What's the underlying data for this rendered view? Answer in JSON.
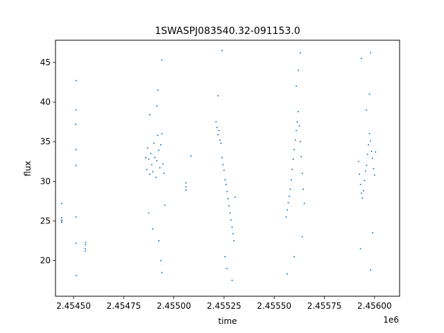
{
  "chart_data": {
    "type": "scatter",
    "title": "1SWASPJ083540.32-091153.0",
    "xlabel": "time",
    "ylabel": "flux",
    "x_offset_label": "1e6",
    "xlim": [
      2454410,
      2456125
    ],
    "ylim": [
      15.5,
      47.8
    ],
    "xticks": [
      2454500,
      2454750,
      2455000,
      2455250,
      2455500,
      2455750,
      2456000
    ],
    "xtick_labels": [
      "2.45450",
      "2.45475",
      "2.45500",
      "2.45525",
      "2.45550",
      "2.45575",
      "2.45600"
    ],
    "yticks": [
      20,
      25,
      30,
      35,
      40,
      45
    ],
    "ytick_labels": [
      "20",
      "25",
      "30",
      "35",
      "40",
      "45"
    ],
    "grid": false,
    "marker_color": "#1f77b4",
    "series": [
      {
        "values": [
          [
            2454440,
            25.0
          ],
          [
            2454440,
            25.4
          ],
          [
            2454441,
            24.8
          ],
          [
            2454441,
            27.2
          ],
          [
            2454442,
            25.1
          ],
          [
            2454513,
            42.7
          ],
          [
            2454512,
            39.0
          ],
          [
            2454511,
            37.2
          ],
          [
            2454512,
            34.0
          ],
          [
            2454513,
            32.0
          ],
          [
            2454512,
            25.5
          ],
          [
            2454513,
            22.2
          ],
          [
            2454513,
            18.1
          ],
          [
            2454558,
            21.5
          ],
          [
            2454559,
            22.0
          ],
          [
            2454559,
            21.2
          ],
          [
            2454560,
            22.3
          ],
          [
            2454860,
            33.0
          ],
          [
            2454865,
            31.5
          ],
          [
            2454870,
            34.2
          ],
          [
            2454875,
            32.8
          ],
          [
            2454880,
            30.9
          ],
          [
            2454885,
            33.5
          ],
          [
            2454890,
            32.1
          ],
          [
            2454895,
            31.2
          ],
          [
            2454900,
            34.8
          ],
          [
            2454905,
            33.0
          ],
          [
            2454910,
            30.5
          ],
          [
            2454915,
            32.6
          ],
          [
            2454920,
            35.8
          ],
          [
            2454925,
            33.9
          ],
          [
            2454930,
            31.7
          ],
          [
            2454935,
            34.6
          ],
          [
            2454940,
            36.0
          ],
          [
            2454945,
            32.2
          ],
          [
            2454950,
            31.0
          ],
          [
            2454955,
            27.0
          ],
          [
            2454875,
            26.0
          ],
          [
            2454880,
            38.4
          ],
          [
            2454915,
            39.5
          ],
          [
            2454920,
            41.5
          ],
          [
            2454940,
            45.3
          ],
          [
            2454935,
            20.0
          ],
          [
            2454925,
            22.5
          ],
          [
            2454940,
            18.5
          ],
          [
            2454895,
            24.0
          ],
          [
            2455060,
            29.3
          ],
          [
            2455060,
            28.9
          ],
          [
            2455060,
            29.8
          ],
          [
            2455085,
            33.2
          ],
          [
            2455210,
            37.5
          ],
          [
            2455215,
            36.8
          ],
          [
            2455220,
            35.9
          ],
          [
            2455225,
            36.4
          ],
          [
            2455230,
            35.2
          ],
          [
            2455235,
            34.8
          ],
          [
            2455240,
            33.0
          ],
          [
            2455245,
            32.1
          ],
          [
            2455250,
            31.4
          ],
          [
            2455255,
            30.2
          ],
          [
            2455260,
            29.6
          ],
          [
            2455265,
            28.7
          ],
          [
            2455270,
            27.8
          ],
          [
            2455275,
            26.9
          ],
          [
            2455280,
            26.0
          ],
          [
            2455285,
            25.1
          ],
          [
            2455290,
            24.2
          ],
          [
            2455295,
            23.4
          ],
          [
            2455300,
            22.5
          ],
          [
            2455305,
            28.0
          ],
          [
            2455240,
            46.5
          ],
          [
            2455220,
            40.8
          ],
          [
            2455265,
            19.0
          ],
          [
            2455255,
            20.5
          ],
          [
            2455290,
            17.5
          ],
          [
            2455560,
            25.5
          ],
          [
            2455565,
            26.4
          ],
          [
            2455570,
            27.3
          ],
          [
            2455575,
            28.1
          ],
          [
            2455580,
            29.0
          ],
          [
            2455585,
            30.2
          ],
          [
            2455590,
            31.5
          ],
          [
            2455595,
            32.8
          ],
          [
            2455600,
            34.0
          ],
          [
            2455605,
            35.2
          ],
          [
            2455610,
            36.4
          ],
          [
            2455615,
            37.5
          ],
          [
            2455620,
            38.8
          ],
          [
            2455625,
            37.0
          ],
          [
            2455630,
            35.0
          ],
          [
            2455635,
            33.1
          ],
          [
            2455640,
            31.0
          ],
          [
            2455645,
            29.0
          ],
          [
            2455650,
            27.2
          ],
          [
            2455630,
            46.2
          ],
          [
            2455610,
            42.0
          ],
          [
            2455565,
            18.3
          ],
          [
            2455600,
            20.5
          ],
          [
            2455640,
            23.0
          ],
          [
            2455620,
            44.0
          ],
          [
            2455920,
            32.5
          ],
          [
            2455925,
            30.9
          ],
          [
            2455930,
            29.6
          ],
          [
            2455935,
            28.5
          ],
          [
            2455940,
            27.9
          ],
          [
            2455945,
            28.8
          ],
          [
            2455950,
            30.1
          ],
          [
            2455955,
            31.3
          ],
          [
            2455960,
            32.0
          ],
          [
            2455965,
            33.4
          ],
          [
            2455970,
            34.6
          ],
          [
            2455975,
            36.0
          ],
          [
            2455980,
            35.1
          ],
          [
            2455985,
            33.8
          ],
          [
            2455990,
            32.9
          ],
          [
            2455995,
            31.6
          ],
          [
            2456000,
            30.8
          ],
          [
            2456005,
            33.7
          ],
          [
            2455935,
            45.5
          ],
          [
            2455980,
            46.2
          ],
          [
            2455975,
            41.0
          ],
          [
            2455960,
            39.0
          ],
          [
            2455930,
            21.5
          ],
          [
            2455990,
            23.5
          ],
          [
            2455980,
            18.8
          ]
        ]
      }
    ]
  }
}
